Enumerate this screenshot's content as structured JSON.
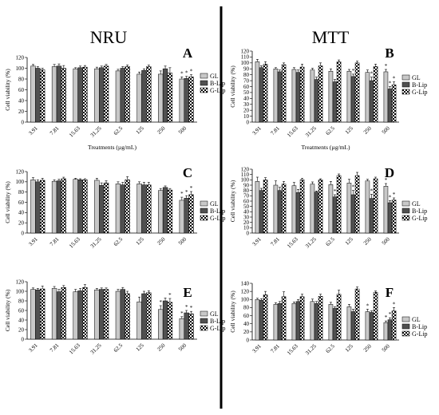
{
  "columns": [
    {
      "title": "NRU"
    },
    {
      "title": "MTT"
    }
  ],
  "colors": {
    "GL": "#c8c8c8",
    "B-Lip": "#505050",
    "G-Lip": "checker",
    "divider": "#000000"
  },
  "chart_data": [
    {
      "panel": "A",
      "column": "NRU",
      "type": "bar",
      "ylabel": "Cell viability (%)",
      "xlabel": "Treatments (µg/mL)",
      "ylim": [
        0,
        120
      ],
      "yticks": [
        0,
        20,
        40,
        60,
        80,
        100,
        120
      ],
      "categories": [
        "3.91",
        "7.81",
        "15.63",
        "31.25",
        "62.5",
        "125",
        "250",
        "500"
      ],
      "legend": [
        "GL",
        "B-Lip",
        "G-Lip"
      ],
      "series": [
        {
          "name": "GL",
          "values": [
            104,
            103,
            99,
            99,
            95,
            89,
            89,
            80
          ],
          "errors": [
            3,
            4,
            2,
            3,
            3,
            4,
            6,
            4
          ]
        },
        {
          "name": "B-Lip",
          "values": [
            100,
            104,
            101,
            101,
            100,
            96,
            99,
            81
          ],
          "errors": [
            3,
            4,
            3,
            3,
            3,
            3,
            5,
            4
          ]
        },
        {
          "name": "G-Lip",
          "values": [
            97,
            100,
            102,
            104,
            103,
            103,
            91,
            84
          ],
          "errors": [
            3,
            5,
            3,
            3,
            3,
            3,
            10,
            4
          ]
        }
      ],
      "annotations": [
        "*",
        "*",
        "*"
      ]
    },
    {
      "panel": "B",
      "column": "MTT",
      "type": "bar",
      "ylabel": "Cell viability (%)",
      "xlabel": "Treatments (µg/mL)",
      "ylim": [
        0,
        120
      ],
      "yticks": [
        0,
        10,
        20,
        30,
        40,
        50,
        60,
        70,
        80,
        90,
        100,
        110,
        120
      ],
      "categories": [
        "3.91",
        "7.81",
        "15.63",
        "31.25",
        "62.5",
        "125",
        "250",
        "500"
      ],
      "legend": [
        "GL",
        "B-Lip",
        "G-Lip"
      ],
      "series": [
        {
          "name": "GL",
          "values": [
            102,
            90,
            89,
            88,
            86,
            86,
            84,
            85
          ],
          "errors": [
            4,
            2,
            3,
            3,
            4,
            3,
            4,
            4
          ]
        },
        {
          "name": "B-Lip",
          "values": [
            92,
            85,
            84,
            72,
            68,
            77,
            70,
            56
          ],
          "errors": [
            3,
            3,
            4,
            4,
            4,
            4,
            6,
            4
          ]
        },
        {
          "name": "G-Lip",
          "values": [
            98,
            97,
            93,
            95,
            102,
            100,
            94,
            63
          ],
          "errors": [
            4,
            3,
            5,
            5,
            3,
            3,
            4,
            5
          ]
        }
      ],
      "annotations": [
        "*",
        "*",
        "*",
        "*",
        "*"
      ]
    },
    {
      "panel": "C",
      "column": "NRU",
      "type": "bar",
      "ylabel": "Cell viability (%)",
      "xlabel": "",
      "ylim": [
        0,
        120
      ],
      "yticks": [
        0,
        20,
        40,
        60,
        80,
        100,
        120
      ],
      "categories": [
        "3.91",
        "7.81",
        "15.63",
        "31.25",
        "62.5",
        "125",
        "250",
        "500"
      ],
      "legend": [
        "GL",
        "B-Lip",
        "G-Lip"
      ],
      "series": [
        {
          "name": "GL",
          "values": [
            104,
            101,
            105,
            103,
            96,
            96,
            83,
            64
          ],
          "errors": [
            4,
            3,
            2,
            4,
            4,
            4,
            4,
            6
          ]
        },
        {
          "name": "B-Lip",
          "values": [
            100,
            102,
            104,
            93,
            94,
            94,
            89,
            68
          ],
          "errors": [
            4,
            3,
            2,
            5,
            5,
            5,
            3,
            5
          ]
        },
        {
          "name": "G-Lip",
          "values": [
            103,
            106,
            104,
            98,
            104,
            94,
            84,
            75
          ],
          "errors": [
            4,
            3,
            2,
            4,
            6,
            5,
            3,
            6
          ]
        }
      ],
      "annotations": [
        "*",
        "*",
        "*"
      ]
    },
    {
      "panel": "D",
      "column": "MTT",
      "type": "bar",
      "ylabel": "Cell viability (%)",
      "xlabel": "",
      "ylim": [
        0,
        120
      ],
      "yticks": [
        0,
        10,
        20,
        30,
        40,
        50,
        60,
        70,
        80,
        90,
        100,
        110,
        120
      ],
      "categories": [
        "3.91",
        "7.81",
        "15.63",
        "31.25",
        "62.5",
        "125",
        "250",
        "500"
      ],
      "legend": [
        "GL",
        "B-Lip",
        "G-Lip"
      ],
      "series": [
        {
          "name": "GL",
          "values": [
            97,
            90,
            89,
            92,
            91,
            94,
            98,
            88
          ],
          "errors": [
            8,
            8,
            6,
            4,
            6,
            7,
            3,
            5
          ]
        },
        {
          "name": "B-Lip",
          "values": [
            80,
            80,
            76,
            77,
            68,
            72,
            65,
            57
          ],
          "errors": [
            4,
            6,
            6,
            2,
            4,
            8,
            8,
            4
          ]
        },
        {
          "name": "G-Lip",
          "values": [
            100,
            92,
            100,
            100,
            108,
            108,
            102,
            62
          ],
          "errors": [
            4,
            5,
            3,
            2,
            3,
            6,
            3,
            4
          ]
        }
      ],
      "annotations": [
        "*",
        "*",
        "*",
        "*",
        "*",
        "*"
      ]
    },
    {
      "panel": "E",
      "column": "NRU",
      "type": "bar",
      "ylabel": "Cell viability (%)",
      "xlabel": "",
      "ylim": [
        0,
        120
      ],
      "yticks": [
        0,
        20,
        40,
        60,
        80,
        100,
        120
      ],
      "categories": [
        "3.91",
        "7.81",
        "15.63",
        "31.25",
        "62.5",
        "125",
        "250",
        "500"
      ],
      "legend": [
        "GL",
        "B-Lip",
        "G-Lip"
      ],
      "series": [
        {
          "name": "GL",
          "values": [
            104,
            106,
            99,
            103,
            100,
            78,
            62,
            43
          ],
          "errors": [
            3,
            4,
            5,
            3,
            4,
            10,
            8,
            4
          ]
        },
        {
          "name": "B-Lip",
          "values": [
            103,
            99,
            101,
            104,
            104,
            95,
            80,
            55
          ],
          "errors": [
            3,
            5,
            5,
            3,
            4,
            5,
            6,
            5
          ]
        },
        {
          "name": "G-Lip",
          "values": [
            105,
            108,
            108,
            104,
            95,
            97,
            77,
            53
          ],
          "errors": [
            6,
            4,
            6,
            3,
            5,
            4,
            8,
            5
          ]
        }
      ],
      "annotations": [
        "*",
        "*",
        "*",
        "*",
        "*"
      ]
    },
    {
      "panel": "F",
      "column": "MTT",
      "type": "bar",
      "ylabel": "Cell viability (%)",
      "xlabel": "",
      "ylim": [
        0,
        140
      ],
      "yticks": [
        0,
        20,
        40,
        60,
        80,
        100,
        120,
        140
      ],
      "categories": [
        "3.91",
        "7.81",
        "15.63",
        "31.25",
        "62.5",
        "125",
        "250",
        "500"
      ],
      "legend": [
        "GL",
        "B-Lip",
        "G-Lip"
      ],
      "series": [
        {
          "name": "GL",
          "values": [
            100,
            88,
            90,
            95,
            88,
            82,
            70,
            43
          ],
          "errors": [
            3,
            4,
            4,
            6,
            5,
            6,
            6,
            4
          ]
        },
        {
          "name": "B-Lip",
          "values": [
            98,
            90,
            95,
            90,
            78,
            70,
            68,
            50
          ],
          "errors": [
            4,
            5,
            5,
            5,
            4,
            6,
            4,
            5
          ]
        },
        {
          "name": "G-Lip",
          "values": [
            112,
            107,
            107,
            108,
            113,
            126,
            118,
            72
          ],
          "errors": [
            8,
            12,
            6,
            5,
            10,
            5,
            3,
            8
          ]
        }
      ],
      "annotations": [
        "*",
        "*",
        "*",
        "*"
      ]
    }
  ]
}
